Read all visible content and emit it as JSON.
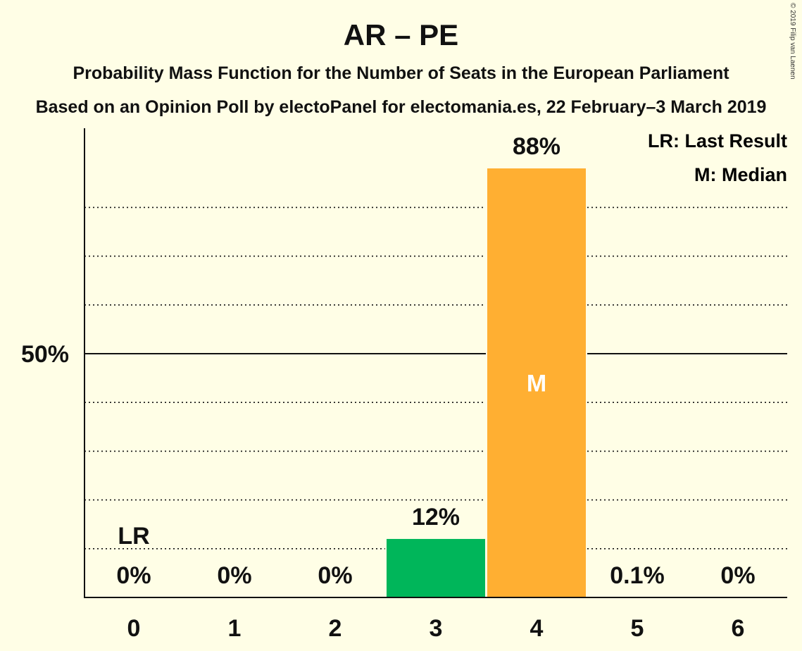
{
  "title": "AR – PE",
  "subtitle1": "Probability Mass Function for the Number of Seats in the European Parliament",
  "subtitle2": "Based on an Opinion Poll by electoPanel for electomania.es, 22 February–3 March 2019",
  "copyright": "© 2019 Filip van Laenen",
  "legend": {
    "lr": "LR: Last Result",
    "m": "M: Median"
  },
  "colors": {
    "background": "#FFFEE6",
    "bar_green": "#00B65A",
    "bar_orange": "#FFAF32"
  },
  "chart_data": {
    "type": "bar",
    "categories": [
      "0",
      "1",
      "2",
      "3",
      "4",
      "5",
      "6"
    ],
    "values": [
      0,
      0,
      0,
      12,
      88,
      0.1,
      0
    ],
    "value_labels": [
      "0%",
      "0%",
      "0%",
      "12%",
      "88%",
      "0.1%",
      "0%"
    ],
    "bar_colors": [
      "#00B65A",
      "#00B65A",
      "#00B65A",
      "#00B65A",
      "#FFAF32",
      "#FFAF32",
      "#FFAF32"
    ],
    "ylim": [
      0,
      94
    ],
    "yticks": [
      {
        "value": 50,
        "label": "50%"
      }
    ],
    "minor_gridlines": [
      10,
      20,
      30,
      40,
      60,
      70,
      80
    ],
    "last_result": {
      "category": "0",
      "label": "LR"
    },
    "median": {
      "category": "4",
      "label": "M"
    },
    "xlabel": "",
    "ylabel": "",
    "grid": true,
    "legend_position": "top-right"
  }
}
